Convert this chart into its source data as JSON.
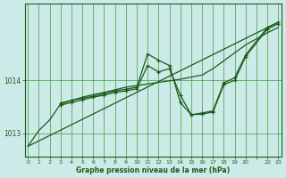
{
  "title": "Graphe pression niveau de la mer (hPa)",
  "background_color": "#cceae7",
  "grid_color": "#3d9e3d",
  "line_color": "#1a5c1a",
  "ylim": [
    1012.55,
    1015.45
  ],
  "yticks": [
    1013,
    1014
  ],
  "xlim": [
    -0.3,
    23.3
  ],
  "xtick_positions": [
    0,
    1,
    2,
    3,
    4,
    5,
    6,
    7,
    8,
    9,
    10,
    11,
    12,
    13,
    14,
    15,
    16,
    17,
    18,
    19,
    20,
    21,
    22,
    23
  ],
  "xtick_labels": [
    "0",
    "1",
    "2",
    "3",
    "4",
    "5",
    "6",
    "7",
    "8",
    "9",
    "10",
    "11",
    "12",
    "13",
    "14",
    "15",
    "16",
    "17",
    "18",
    "19",
    "20",
    "",
    "22",
    "23"
  ],
  "series": [
    {
      "x": [
        0,
        1,
        2,
        3,
        4,
        5,
        6,
        7,
        8,
        9,
        10,
        11,
        12,
        13,
        14,
        15,
        16,
        17,
        18,
        19,
        20,
        22,
        23
      ],
      "y": [
        1012.75,
        1013.05,
        1013.25,
        1013.55,
        1013.62,
        1013.68,
        1013.73,
        1013.77,
        1013.82,
        1013.87,
        1013.9,
        1013.93,
        1013.96,
        1013.99,
        1014.02,
        1014.06,
        1014.1,
        1014.22,
        1014.37,
        1014.52,
        1014.67,
        1014.9,
        1015.0
      ],
      "marker": false,
      "linewidth": 0.9
    },
    {
      "x": [
        0,
        23
      ],
      "y": [
        1012.75,
        1015.1
      ],
      "marker": false,
      "linewidth": 0.9
    },
    {
      "x": [
        3,
        4,
        5,
        6,
        7,
        8,
        9,
        10,
        11,
        12,
        13,
        14,
        15,
        16,
        17,
        18,
        19,
        20,
        22,
        23
      ],
      "y": [
        1013.57,
        1013.62,
        1013.66,
        1013.7,
        1013.75,
        1013.8,
        1013.83,
        1013.87,
        1014.5,
        1014.38,
        1014.28,
        1013.58,
        1013.35,
        1013.38,
        1013.42,
        1013.95,
        1014.05,
        1014.48,
        1015.0,
        1015.1
      ],
      "marker": true,
      "linewidth": 0.9
    },
    {
      "x": [
        3,
        4,
        5,
        6,
        7,
        8,
        9,
        10,
        11,
        12,
        13,
        14,
        15,
        16,
        17,
        18,
        19,
        20,
        22,
        23
      ],
      "y": [
        1013.53,
        1013.58,
        1013.63,
        1013.68,
        1013.72,
        1013.77,
        1013.8,
        1013.84,
        1014.28,
        1014.16,
        1014.22,
        1013.72,
        1013.35,
        1013.36,
        1013.4,
        1013.92,
        1014.0,
        1014.45,
        1014.97,
        1015.07
      ],
      "marker": true,
      "linewidth": 0.9
    }
  ]
}
